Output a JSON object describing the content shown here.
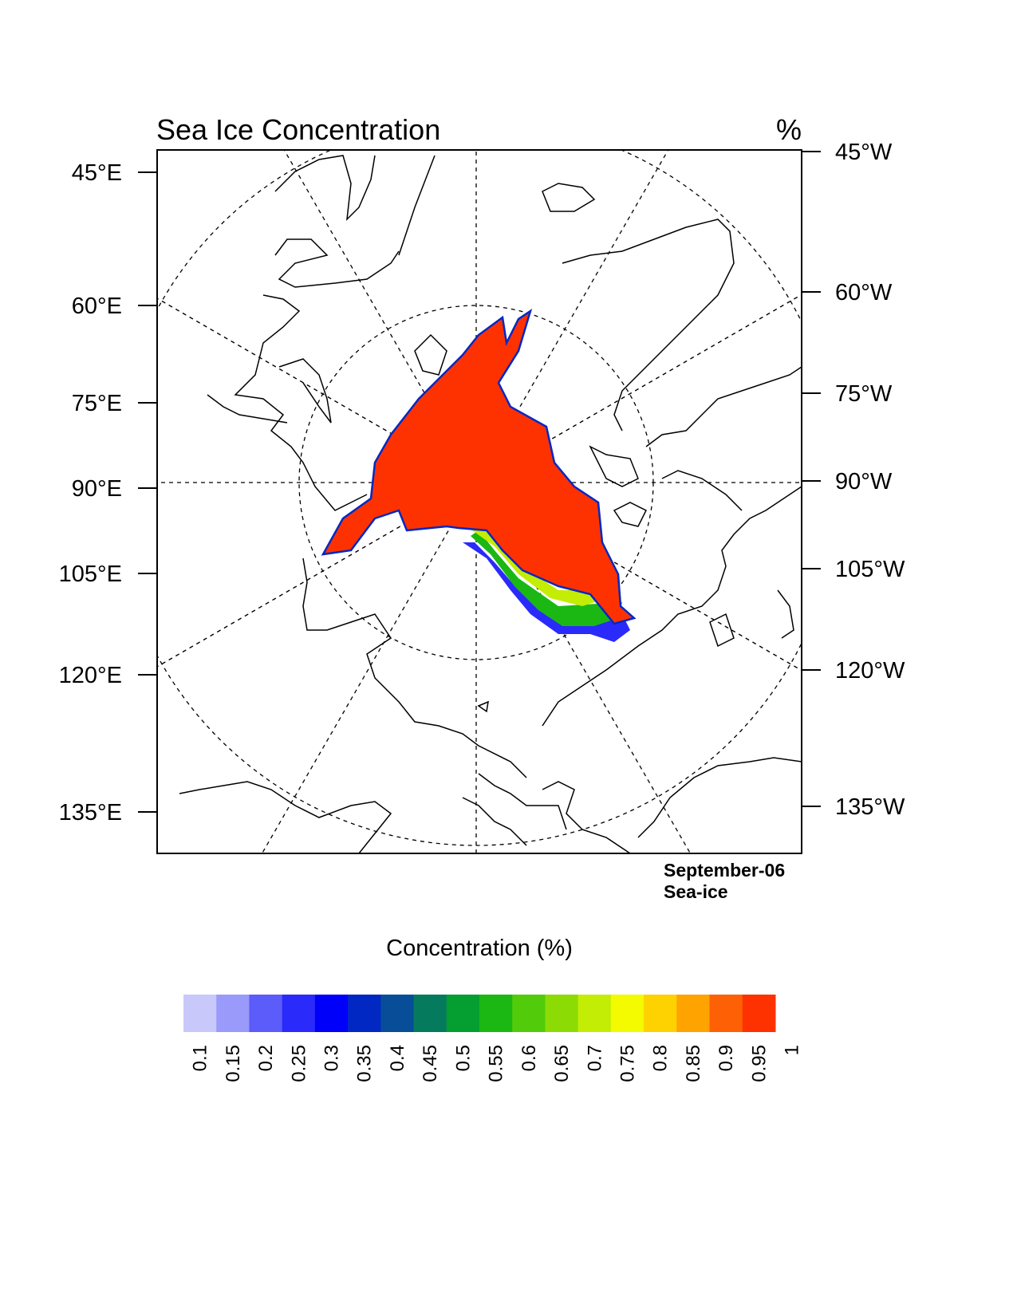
{
  "title": "Sea Ice Concentration",
  "units": "%",
  "annotation": {
    "line1": "September-06",
    "line2": "Sea-ice"
  },
  "colorbar": {
    "title": "Concentration (%)",
    "labels": [
      "0.1",
      "0.15",
      "0.2",
      "0.25",
      "0.3",
      "0.35",
      "0.4",
      "0.45",
      "0.5",
      "0.55",
      "0.6",
      "0.65",
      "0.7",
      "0.75",
      "0.8",
      "0.85",
      "0.9",
      "0.95",
      "1"
    ],
    "colors": [
      "#c8c8fa",
      "#9a9afa",
      "#5c5cfa",
      "#2a2afa",
      "#0000fa",
      "#0228c4",
      "#074d98",
      "#067a5c",
      "#059e30",
      "#1bb814",
      "#52cc0a",
      "#8ddb05",
      "#c4ed05",
      "#f4fa00",
      "#fed200",
      "#fea300",
      "#fe6005",
      "#fe3200"
    ]
  },
  "left_ticks": [
    "45°E",
    "60°E",
    "75°E",
    "90°E",
    "105°E",
    "120°E",
    "135°E"
  ],
  "right_ticks": [
    "45°W",
    "60°W",
    "75°W",
    "90°W",
    "105°W",
    "120°W",
    "135°W"
  ],
  "chart_data": {
    "type": "map",
    "projection": "north polar stereographic",
    "variable": "Sea Ice Concentration",
    "units": "%",
    "date": "September-06",
    "levels": [
      0.1,
      0.15,
      0.2,
      0.25,
      0.3,
      0.35,
      0.4,
      0.45,
      0.5,
      0.55,
      0.6,
      0.65,
      0.7,
      0.75,
      0.8,
      0.85,
      0.9,
      0.95,
      1
    ],
    "field_description_values": {
      "central_arctic_max": 1,
      "edge_min": 0.1
    },
    "grid": true
  }
}
